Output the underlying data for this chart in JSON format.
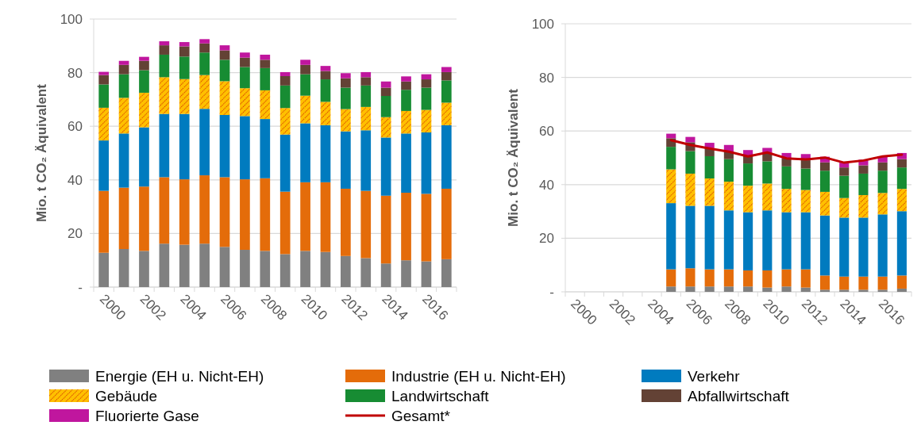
{
  "chart_data": [
    {
      "type": "bar",
      "stacked": true,
      "ylabel": "Mio. t CO₂ Äquivalent",
      "categories": [
        "2000",
        null,
        "2002",
        null,
        "2004",
        null,
        "2006",
        null,
        "2008",
        null,
        "2010",
        null,
        "2012",
        null,
        "2014",
        null,
        "2016",
        null
      ],
      "ylim": [
        0,
        100
      ],
      "yticks": [
        {
          "value": 0,
          "label": "-"
        },
        20,
        40,
        60,
        80,
        100
      ],
      "grid": "y",
      "legend": "bottom",
      "series": [
        {
          "name": "Energie (EH u. Nicht-EH)",
          "color": "#808080",
          "values": [
            12.8,
            14.2,
            13.5,
            16.2,
            15.8,
            16.2,
            15.0,
            13.9,
            13.5,
            12.3,
            13.5,
            13.1,
            11.6,
            10.8,
            8.8,
            10.0,
            9.6,
            10.4
          ]
        },
        {
          "name": "Industrie (EH u. Nicht-EH)",
          "color": "#e46c0a",
          "values": [
            23.1,
            22.9,
            24.0,
            24.8,
            24.4,
            25.5,
            26.0,
            26.3,
            27.1,
            23.3,
            25.6,
            26.0,
            25.1,
            25.1,
            25.3,
            25.2,
            25.2,
            26.3
          ]
        },
        {
          "name": "Verkehr",
          "color": "#007bbf",
          "values": [
            18.8,
            20.2,
            22.1,
            23.6,
            24.4,
            24.8,
            23.2,
            23.6,
            22.1,
            21.3,
            22.0,
            21.3,
            21.4,
            22.6,
            21.7,
            22.1,
            22.9,
            23.7
          ]
        },
        {
          "name": "Gebäude",
          "color": "#ffc000",
          "values": [
            12.2,
            13.3,
            12.9,
            13.7,
            13.0,
            12.6,
            12.6,
            10.4,
            10.7,
            9.9,
            10.3,
            8.7,
            8.3,
            8.7,
            7.6,
            8.4,
            8.4,
            8.4
          ]
        },
        {
          "name": "Landwirtschaft",
          "color": "#178c33",
          "values": [
            8.7,
            8.8,
            8.4,
            8.4,
            8.4,
            8.4,
            8.0,
            7.9,
            8.3,
            8.4,
            8.0,
            8.4,
            8.0,
            8.0,
            7.9,
            7.9,
            8.3,
            8.3
          ]
        },
        {
          "name": "Abfallwirtschaft",
          "color": "#634235",
          "values": [
            3.5,
            3.5,
            3.5,
            3.5,
            3.8,
            3.4,
            3.5,
            3.5,
            3.1,
            3.5,
            3.5,
            3.1,
            3.5,
            3.1,
            3.1,
            3.1,
            3.1,
            3.1
          ]
        },
        {
          "name": "Fluorierte Gase",
          "color": "#c0169e",
          "values": [
            1.2,
            1.5,
            1.5,
            1.5,
            1.6,
            1.6,
            1.9,
            1.9,
            1.9,
            1.5,
            1.9,
            1.9,
            1.9,
            1.9,
            2.3,
            1.9,
            1.9,
            1.9
          ]
        }
      ]
    },
    {
      "type": "bar",
      "stacked": true,
      "ylabel": "Mio. t CO₂ Äquivalent",
      "categories": [
        "2000",
        null,
        "2002",
        null,
        "2004",
        null,
        "2006",
        null,
        "2008",
        null,
        "2010",
        null,
        "2012",
        null,
        "2014",
        null,
        "2016",
        null
      ],
      "ylim": [
        0,
        100
      ],
      "yticks": [
        {
          "value": 0,
          "label": "-"
        },
        20,
        40,
        60,
        80,
        100
      ],
      "grid": "y",
      "legend": "bottom",
      "series": [
        {
          "name": "Energie (EH u. Nicht-EH)",
          "color": "#808080",
          "values": [
            null,
            null,
            null,
            null,
            null,
            2.0,
            2.0,
            2.0,
            2.0,
            2.0,
            1.6,
            2.0,
            1.6,
            0.8,
            0.8,
            0.8,
            0.8,
            1.2
          ]
        },
        {
          "name": "Industrie (EH u. Nicht-EH)",
          "color": "#e46c0a",
          "values": [
            null,
            null,
            null,
            null,
            null,
            6.4,
            6.8,
            6.4,
            6.4,
            6.0,
            6.4,
            6.4,
            6.8,
            5.3,
            4.9,
            4.9,
            4.9,
            4.9
          ]
        },
        {
          "name": "Verkehr",
          "color": "#007bbf",
          "values": [
            null,
            null,
            null,
            null,
            null,
            24.7,
            23.3,
            23.7,
            22.0,
            21.7,
            22.4,
            21.3,
            21.3,
            22.4,
            22.0,
            22.0,
            23.2,
            24.0
          ]
        },
        {
          "name": "Gebäude",
          "color": "#ffc000",
          "values": [
            null,
            null,
            null,
            null,
            null,
            12.6,
            12.0,
            10.2,
            10.7,
            9.9,
            10.0,
            8.7,
            8.3,
            8.8,
            7.3,
            8.4,
            8.0,
            8.3
          ]
        },
        {
          "name": "Landwirtschaft",
          "color": "#178c33",
          "values": [
            null,
            null,
            null,
            null,
            null,
            8.4,
            8.4,
            8.3,
            8.4,
            8.3,
            8.3,
            8.4,
            8.0,
            7.9,
            8.3,
            8.0,
            8.3,
            8.0
          ]
        },
        {
          "name": "Abfallwirtschaft",
          "color": "#634235",
          "values": [
            null,
            null,
            null,
            null,
            null,
            3.2,
            3.3,
            3.0,
            2.8,
            2.9,
            3.1,
            2.9,
            3.1,
            3.1,
            3.1,
            3.1,
            3.1,
            3.1
          ]
        },
        {
          "name": "Fluorierte Gase",
          "color": "#c0169e",
          "values": [
            null,
            null,
            null,
            null,
            null,
            1.7,
            2.0,
            2.0,
            2.5,
            2.1,
            1.9,
            2.1,
            2.3,
            2.1,
            1.8,
            2.1,
            2.1,
            2.3
          ]
        },
        {
          "name": "Gesamt*",
          "type": "line",
          "color": "#c00000",
          "values": [
            null,
            null,
            null,
            null,
            null,
            56.6,
            54.8,
            53.5,
            52.3,
            50.5,
            52.0,
            49.8,
            49.4,
            50.1,
            48.2,
            49.0,
            50.5,
            51.2
          ]
        }
      ]
    }
  ]
}
